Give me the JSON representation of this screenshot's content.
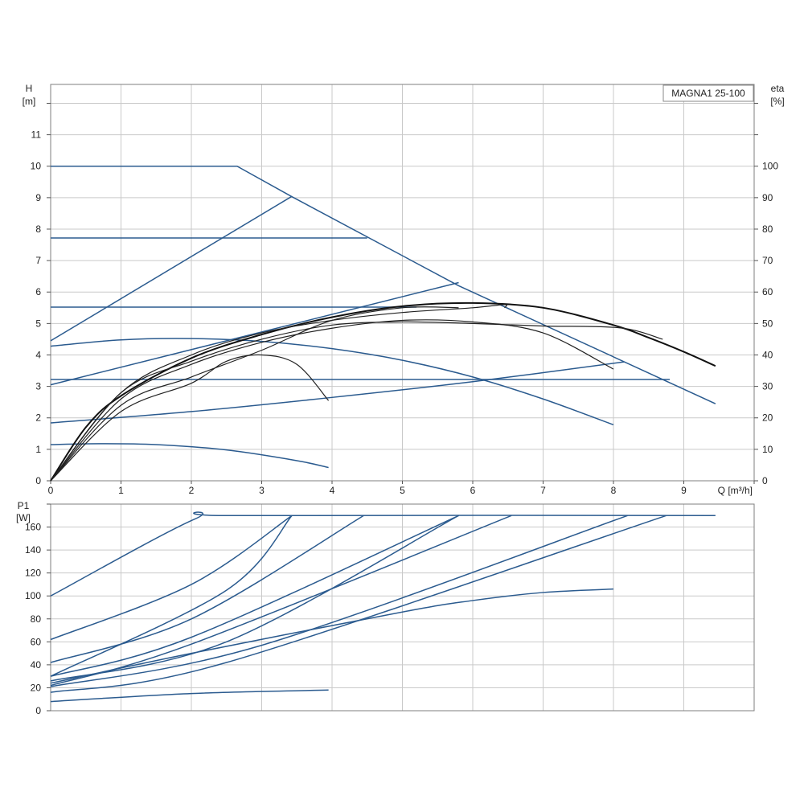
{
  "legend_label": "MAGNA1 25-100",
  "colors": {
    "curves_blue": "#2b5b8f",
    "efficiency_black": "#222222",
    "grid": "#c9c9c9"
  },
  "chart_data": [
    {
      "type": "line",
      "panel": "head-efficiency",
      "legend": "MAGNA1 25-100",
      "xlabel": "Q [m³/h]",
      "ylabel_left": [
        "H",
        "[m]"
      ],
      "ylabel_right": [
        "eta",
        "[%]"
      ],
      "xlim": [
        0,
        10
      ],
      "ylim_left": [
        0,
        12.6
      ],
      "ylim_right": [
        0,
        126
      ],
      "x_ticks": [
        "0",
        "1",
        "2",
        "3",
        "4",
        "5",
        "6",
        "7",
        "8",
        "9"
      ],
      "y_ticks_left": [
        "0",
        "1",
        "2",
        "3",
        "4",
        "5",
        "6",
        "7",
        "8",
        "9",
        "10",
        "11"
      ],
      "y_ticks_right": [
        "0",
        "10",
        "20",
        "30",
        "40",
        "50",
        "60",
        "70",
        "80",
        "90",
        "100"
      ],
      "grid": true,
      "head_curves": [
        [
          [
            0,
            10.0
          ],
          [
            2.65,
            10.0
          ],
          [
            3.43,
            9.03
          ],
          [
            5.8,
            6.2
          ],
          [
            9.45,
            2.45
          ]
        ],
        [
          [
            0,
            7.72
          ],
          [
            4.5,
            7.72
          ]
        ],
        [
          [
            0,
            5.52
          ],
          [
            5.2,
            5.52
          ]
        ],
        [
          [
            0,
            3.22
          ],
          [
            8.8,
            3.22
          ]
        ],
        [
          [
            0,
            4.45
          ],
          [
            3.42,
            9.03
          ]
        ],
        [
          [
            0,
            3.05
          ],
          [
            5.8,
            6.3
          ]
        ],
        [
          [
            0,
            1.84
          ],
          [
            2.0,
            2.2
          ],
          [
            4.0,
            2.65
          ],
          [
            6.0,
            3.15
          ],
          [
            8.15,
            3.78
          ]
        ],
        [
          [
            0,
            4.28
          ],
          [
            1.0,
            4.48
          ],
          [
            2.0,
            4.52
          ],
          [
            3.0,
            4.43
          ],
          [
            4.0,
            4.2
          ],
          [
            5.0,
            3.83
          ],
          [
            6.0,
            3.3
          ],
          [
            7.0,
            2.6
          ],
          [
            8.0,
            1.78
          ]
        ],
        [
          [
            0,
            1.15
          ],
          [
            0.7,
            1.18
          ],
          [
            1.5,
            1.15
          ],
          [
            2.5,
            0.98
          ],
          [
            3.5,
            0.64
          ],
          [
            3.95,
            0.42
          ]
        ]
      ],
      "efficiency_curves": [
        [
          [
            0,
            0
          ],
          [
            0.5,
            17
          ],
          [
            1.0,
            27
          ],
          [
            2.0,
            39
          ],
          [
            3.0,
            46.5
          ],
          [
            4.0,
            52
          ],
          [
            5.0,
            55.5
          ],
          [
            6.0,
            56.5
          ],
          [
            7.0,
            55
          ],
          [
            8.0,
            49.5
          ],
          [
            8.5,
            45.5
          ],
          [
            9.0,
            41
          ],
          [
            9.45,
            36.5
          ]
        ],
        [
          [
            0,
            0
          ],
          [
            1.0,
            28
          ],
          [
            2.0,
            40
          ],
          [
            3.0,
            47
          ],
          [
            4.0,
            51
          ],
          [
            5.0,
            53.5
          ],
          [
            6.0,
            55
          ],
          [
            6.45,
            56
          ],
          [
            6.45,
            55
          ]
        ],
        [
          [
            0,
            0
          ],
          [
            1.0,
            28
          ],
          [
            2.0,
            38
          ],
          [
            3.0,
            45
          ],
          [
            4.0,
            49.5
          ],
          [
            5.0,
            50.5
          ],
          [
            6.0,
            50
          ],
          [
            7.0,
            49.2
          ],
          [
            8.1,
            48.6
          ],
          [
            8.7,
            45
          ]
        ],
        [
          [
            0,
            0
          ],
          [
            1.0,
            26
          ],
          [
            2.0,
            37
          ],
          [
            3.0,
            44
          ],
          [
            4.0,
            48.5
          ],
          [
            5.0,
            51
          ],
          [
            6.0,
            50.5
          ],
          [
            7.0,
            47
          ],
          [
            8.0,
            35.5
          ]
        ],
        [
          [
            0,
            0
          ],
          [
            1.0,
            24
          ],
          [
            2.0,
            33
          ],
          [
            3.0,
            41.5
          ],
          [
            4.0,
            51
          ],
          [
            5.0,
            55
          ],
          [
            5.8,
            55
          ]
        ],
        [
          [
            0,
            0
          ],
          [
            1.0,
            22
          ],
          [
            2.0,
            31
          ],
          [
            2.5,
            38
          ],
          [
            3.0,
            40
          ],
          [
            3.5,
            37
          ],
          [
            3.95,
            25.5
          ]
        ]
      ]
    },
    {
      "type": "line",
      "panel": "power",
      "xlabel": "",
      "ylabel": [
        "P1",
        "[W]"
      ],
      "xlim": [
        0,
        10
      ],
      "ylim": [
        0,
        180
      ],
      "y_ticks": [
        "0",
        "20",
        "40",
        "60",
        "80",
        "100",
        "120",
        "140",
        "160"
      ],
      "grid": true,
      "power_curves": [
        [
          [
            0,
            100
          ],
          [
            2.05,
            167
          ],
          [
            2.65,
            170
          ],
          [
            9.45,
            170
          ]
        ],
        [
          [
            0,
            62
          ],
          [
            2.0,
            110
          ],
          [
            3.43,
            170
          ]
        ],
        [
          [
            0,
            42
          ],
          [
            2.0,
            80
          ],
          [
            4.45,
            170
          ]
        ],
        [
          [
            0,
            30
          ],
          [
            2.0,
            64
          ],
          [
            5.8,
            170
          ]
        ],
        [
          [
            0,
            22
          ],
          [
            2.0,
            58
          ],
          [
            6.55,
            170
          ]
        ],
        [
          [
            0,
            30
          ],
          [
            2.5,
            105
          ],
          [
            3.43,
            170
          ]
        ],
        [
          [
            0,
            26
          ],
          [
            2.5,
            60
          ],
          [
            5.8,
            170
          ]
        ],
        [
          [
            0,
            21
          ],
          [
            3.0,
            57
          ],
          [
            8.2,
            170
          ]
        ],
        [
          [
            0,
            16
          ],
          [
            2.5,
            42
          ],
          [
            8.75,
            170
          ]
        ],
        [
          [
            0,
            24
          ],
          [
            2.0,
            50
          ],
          [
            5.0,
            86
          ],
          [
            6.0,
            96
          ],
          [
            7.0,
            103
          ],
          [
            8.0,
            106
          ]
        ],
        [
          [
            0,
            8
          ],
          [
            2.0,
            15
          ],
          [
            3.95,
            18
          ]
        ]
      ]
    }
  ]
}
